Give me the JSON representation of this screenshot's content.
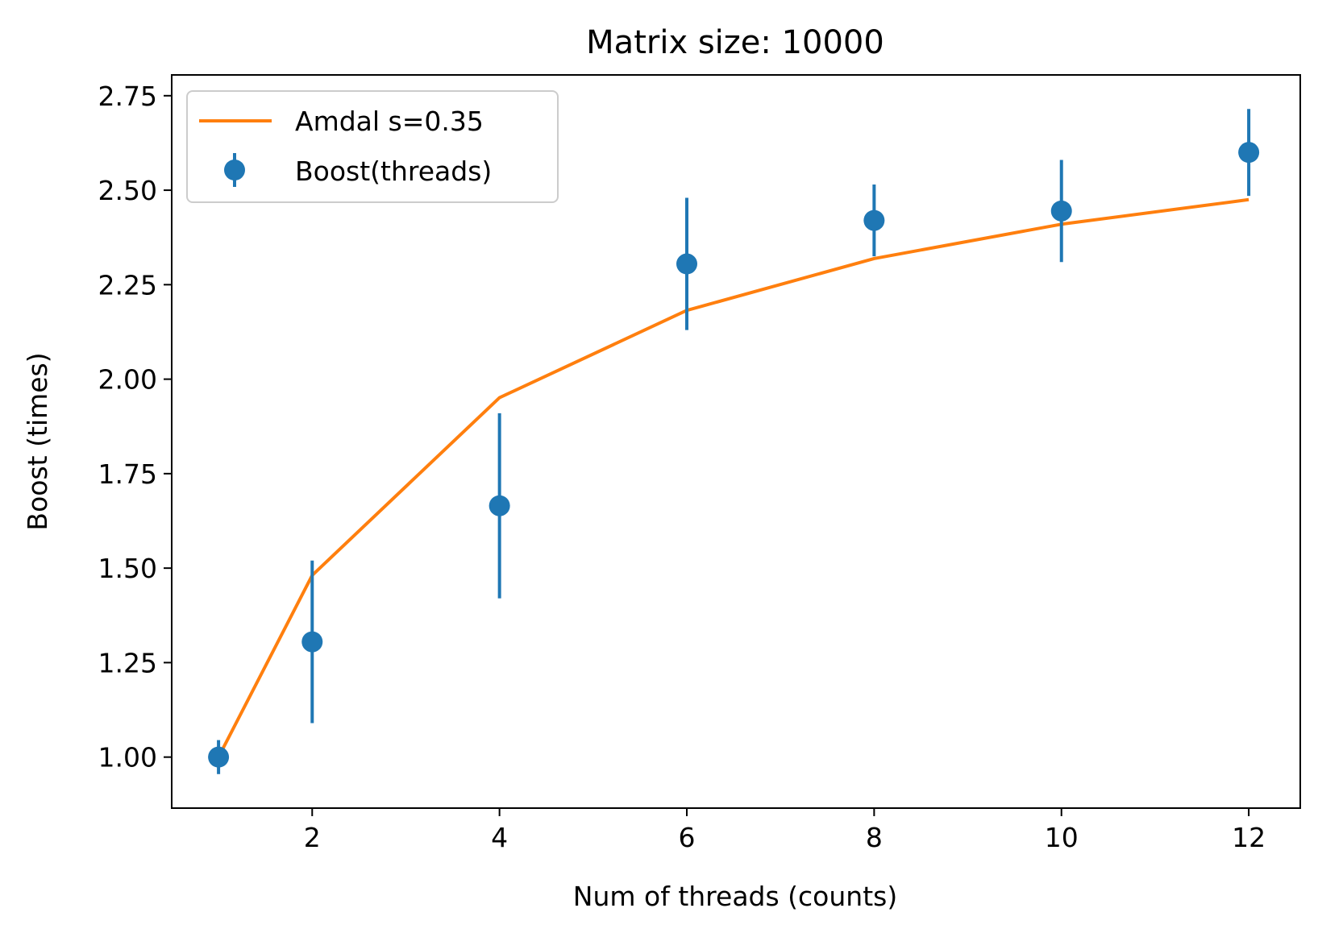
{
  "chart_data": {
    "type": "scatter",
    "title": "Matrix size: 10000",
    "xlabel": "Num of threads (counts)",
    "ylabel": "Boost (times)",
    "xlim": [
      0.5,
      12.55
    ],
    "ylim": [
      0.865,
      2.805
    ],
    "x_ticks": [
      2,
      4,
      6,
      8,
      10,
      12
    ],
    "x_tick_labels": [
      "2",
      "4",
      "6",
      "8",
      "10",
      "12"
    ],
    "y_ticks": [
      1.0,
      1.25,
      1.5,
      1.75,
      2.0,
      2.25,
      2.5,
      2.75
    ],
    "y_tick_labels": [
      "1.00",
      "1.25",
      "1.50",
      "1.75",
      "2.00",
      "2.25",
      "2.50",
      "2.75"
    ],
    "grid": false,
    "legend_position": "top-left",
    "series": [
      {
        "name": "Amdal s=0.35",
        "kind": "line",
        "color": "#ff7f0e",
        "x": [
          1,
          2,
          4,
          6,
          8,
          10,
          12
        ],
        "y": [
          1.0,
          1.481,
          1.951,
          2.182,
          2.319,
          2.41,
          2.475
        ]
      },
      {
        "name": "Boost(threads)",
        "kind": "errorbar",
        "color": "#1f77b4",
        "x": [
          1,
          2,
          4,
          6,
          8,
          10,
          12
        ],
        "y": [
          1.0,
          1.305,
          1.665,
          2.305,
          2.42,
          2.445,
          2.6
        ],
        "yerr": [
          0.045,
          0.215,
          0.245,
          0.175,
          0.095,
          0.135,
          0.115
        ]
      }
    ]
  }
}
